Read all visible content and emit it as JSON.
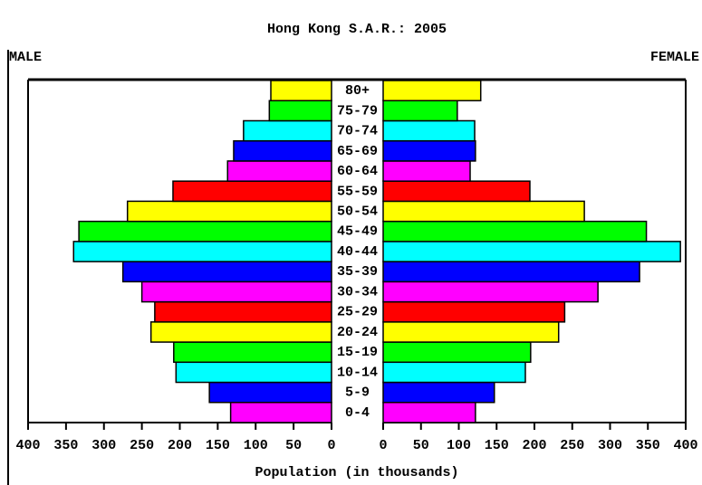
{
  "chart_data": {
    "type": "pyramid",
    "title": "Hong Kong S.A.R.: 2005",
    "left_label": "MALE",
    "right_label": "FEMALE",
    "x_label": "Population (in thousands)",
    "categories": [
      "0-4",
      "5-9",
      "10-14",
      "15-19",
      "20-24",
      "25-29",
      "30-34",
      "35-39",
      "40-44",
      "45-49",
      "50-54",
      "55-59",
      "60-64",
      "65-69",
      "70-74",
      "75-79",
      "80+"
    ],
    "colors": [
      "#ff00ff",
      "#0000ff",
      "#00ffff",
      "#00ff00",
      "#ffff00",
      "#ff0000",
      "#ff00ff",
      "#0000ff",
      "#00ffff",
      "#00ff00",
      "#ffff00",
      "#ff0000",
      "#ff00ff",
      "#0000ff",
      "#00ffff",
      "#00ff00",
      "#ffff00"
    ],
    "series": [
      {
        "name": "MALE",
        "values": [
          133,
          161,
          205,
          208,
          238,
          233,
          250,
          275,
          340,
          333,
          269,
          209,
          137,
          129,
          116,
          82,
          80
        ]
      },
      {
        "name": "FEMALE",
        "values": [
          122,
          147,
          188,
          195,
          232,
          240,
          284,
          339,
          393,
          348,
          266,
          194,
          115,
          122,
          121,
          98,
          129
        ]
      }
    ],
    "xlim": [
      0,
      400
    ],
    "xticks": [
      0,
      50,
      100,
      150,
      200,
      250,
      300,
      350,
      400
    ]
  }
}
